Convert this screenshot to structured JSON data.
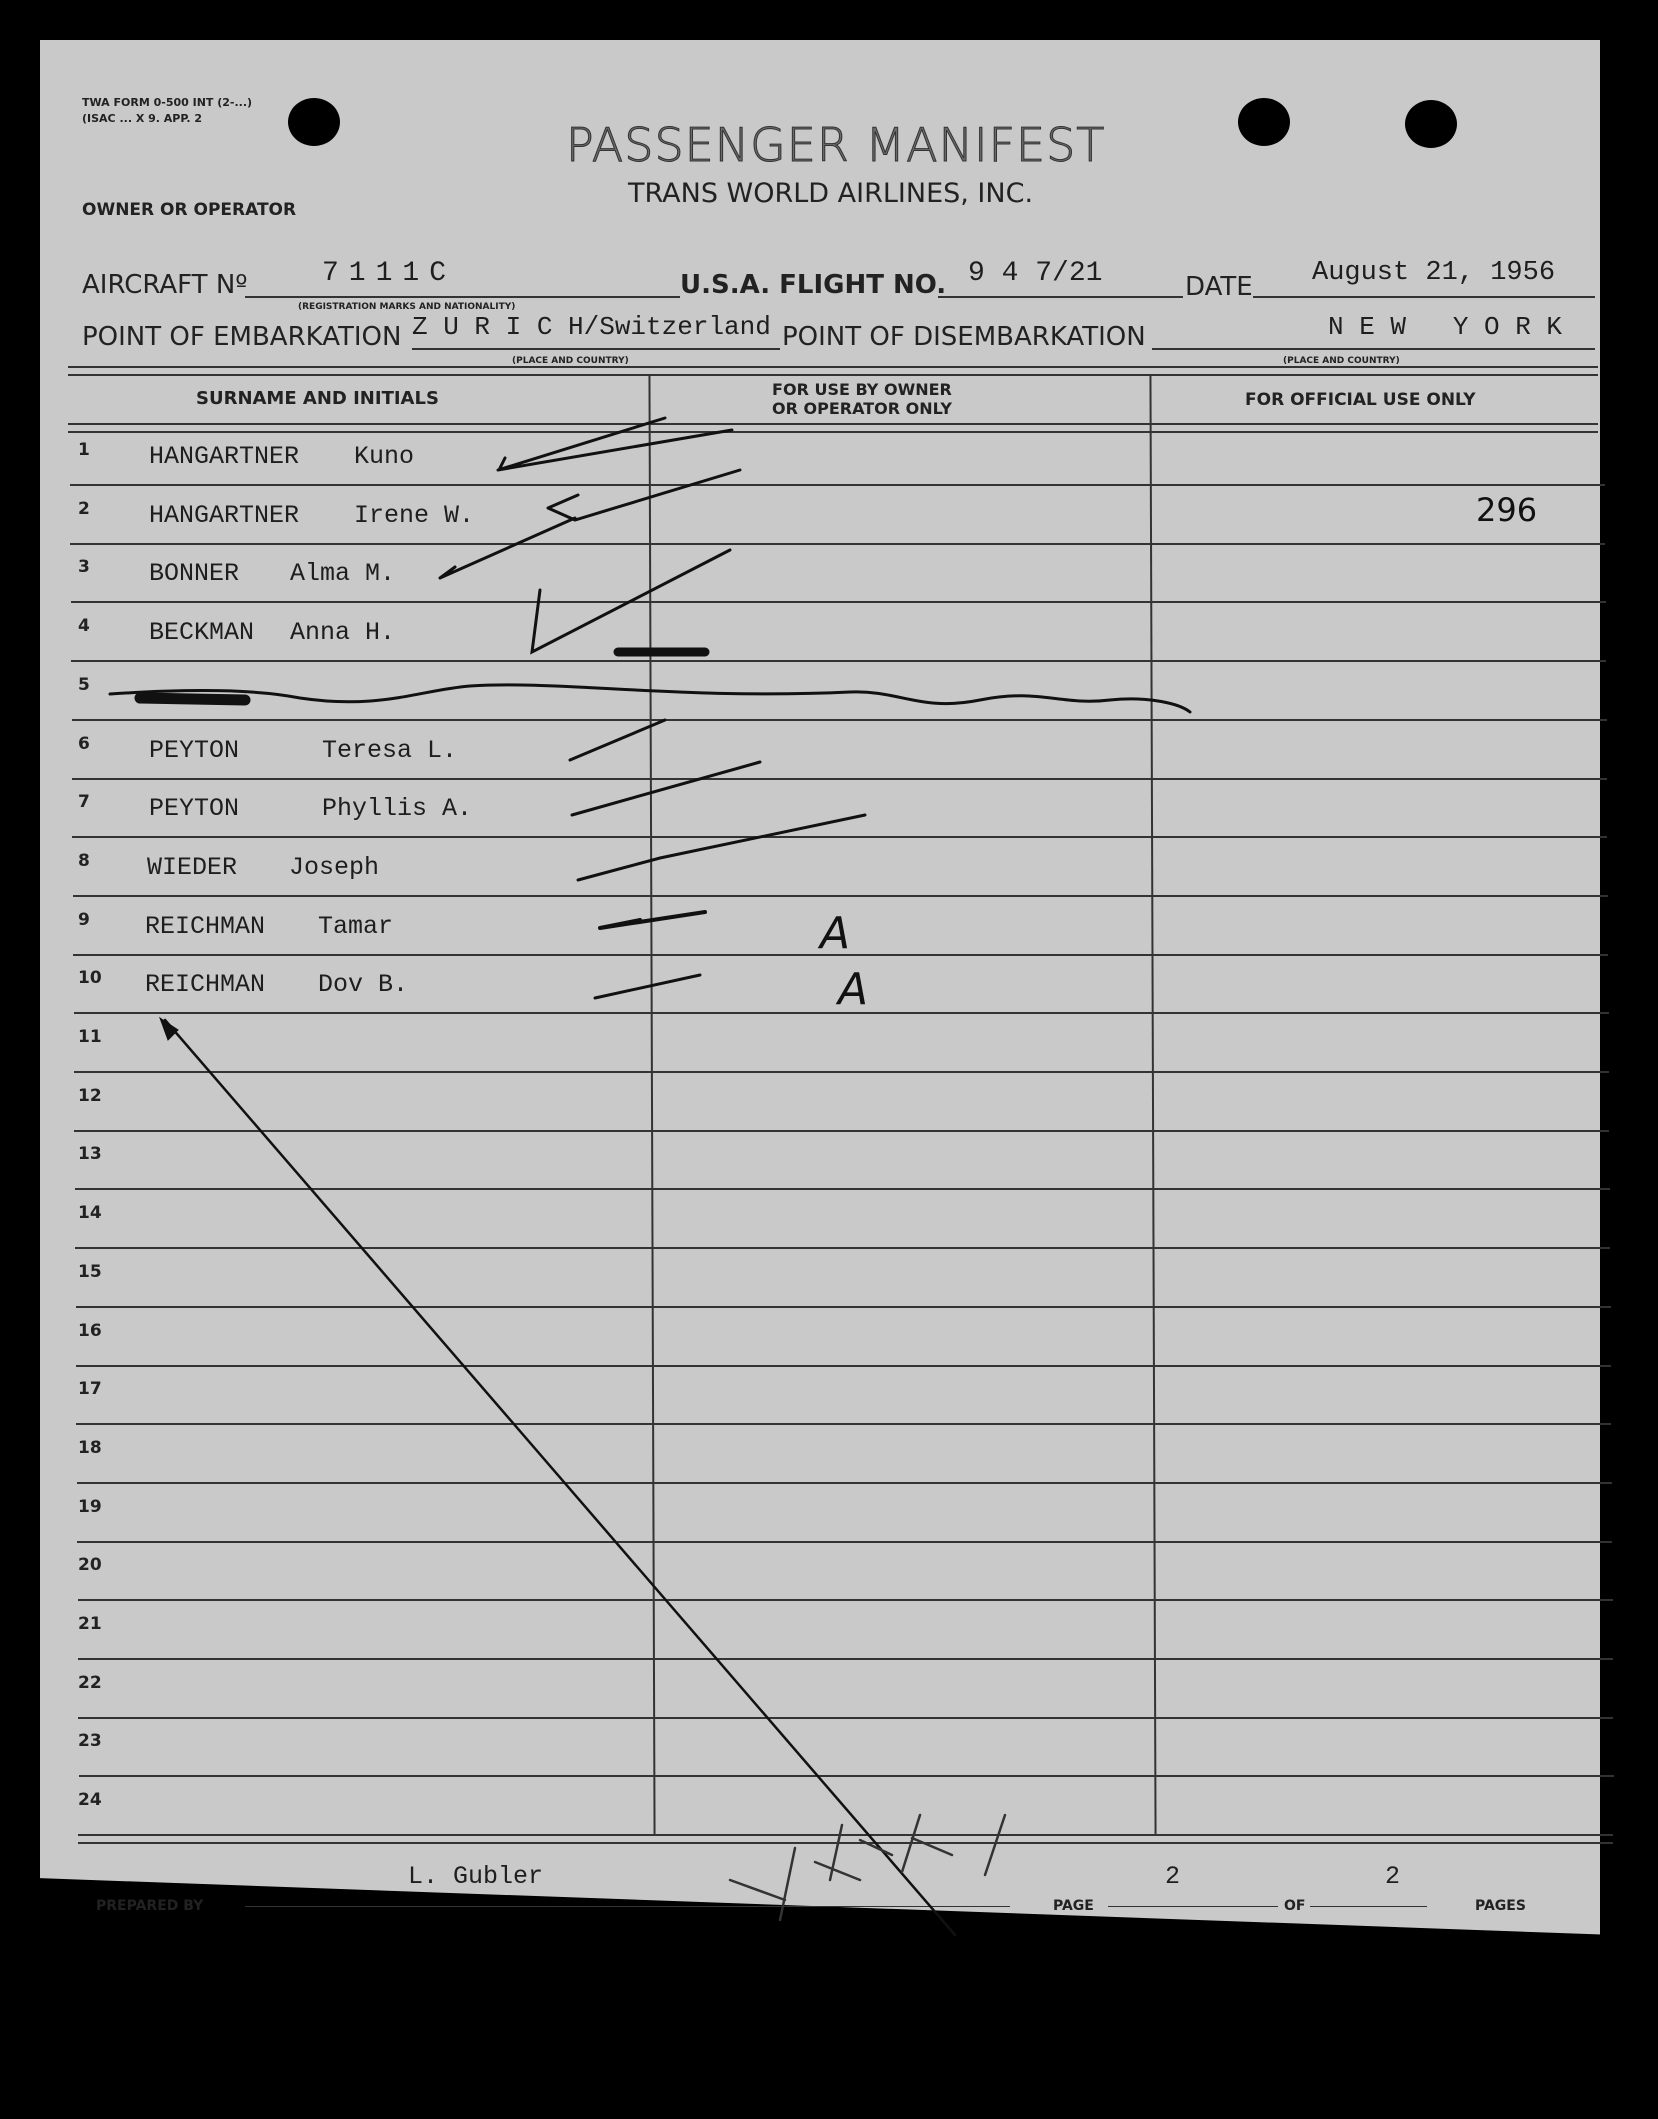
{
  "form_id": [
    "TWA FORM 0-500 INT (2-...)",
    "(ISAC ... X 9. APP. 2"
  ],
  "title": "PASSENGER MANIFEST",
  "company": "TRANS WORLD AIRLINES, INC.",
  "owner_label": "OWNER OR OPERATOR",
  "aircraft": {
    "label": "AIRCRAFT Nº",
    "value": "7111C",
    "note": "(REGISTRATION MARKS AND NATIONALITY)"
  },
  "flight": {
    "label": "U.S.A. FLIGHT NO.",
    "value": "9 4 7/21"
  },
  "date": {
    "label": "DATE",
    "value": "August 21, 1956"
  },
  "embarkation": {
    "label": "POINT OF EMBARKATION",
    "value": "Z U R I C H/Switzerland",
    "note": "(PLACE AND COUNTRY)"
  },
  "disembarkation": {
    "label": "POINT OF DISEMBARKATION",
    "value": "N E W   Y O R K",
    "note": "(PLACE AND COUNTRY)"
  },
  "columns": [
    "SURNAME AND INITIALS",
    "FOR USE BY OWNER\nOR OPERATOR ONLY",
    "FOR OFFICIAL USE ONLY"
  ],
  "rows": [
    {
      "num": "1",
      "surname": "HANGARTNER",
      "given": "Kuno",
      "official": ""
    },
    {
      "num": "2",
      "surname": "HANGARTNER",
      "given": "Irene W.",
      "official": "296"
    },
    {
      "num": "3",
      "surname": "BONNER",
      "given": "Alma M.",
      "official": ""
    },
    {
      "num": "4",
      "surname": "BECKMAN",
      "given": "Anna H.",
      "official": ""
    },
    {
      "num": "5",
      "surname": "",
      "given": "",
      "official": ""
    },
    {
      "num": "6",
      "surname": "PEYTON",
      "given": "Teresa L.",
      "official": ""
    },
    {
      "num": "7",
      "surname": "PEYTON",
      "given": "Phyllis A.",
      "official": ""
    },
    {
      "num": "8",
      "surname": "WIEDER",
      "given": "Joseph",
      "official": ""
    },
    {
      "num": "9",
      "surname": "REICHMAN",
      "given": "Tamar",
      "official": ""
    },
    {
      "num": "10",
      "surname": "REICHMAN",
      "given": "Dov B.",
      "official": ""
    },
    {
      "num": "11"
    },
    {
      "num": "12"
    },
    {
      "num": "13"
    },
    {
      "num": "14"
    },
    {
      "num": "15"
    },
    {
      "num": "16"
    },
    {
      "num": "17"
    },
    {
      "num": "18"
    },
    {
      "num": "19"
    },
    {
      "num": "20"
    },
    {
      "num": "21"
    },
    {
      "num": "22"
    },
    {
      "num": "23"
    },
    {
      "num": "24"
    }
  ],
  "handwritten_initials": "A A",
  "footer": {
    "prepared_by_label": "PREPARED BY",
    "prepared_by": "L. Gubler",
    "page_label": "PAGE",
    "page": "2",
    "of_label": "OF",
    "of": "2",
    "pages_label": "PAGES"
  }
}
